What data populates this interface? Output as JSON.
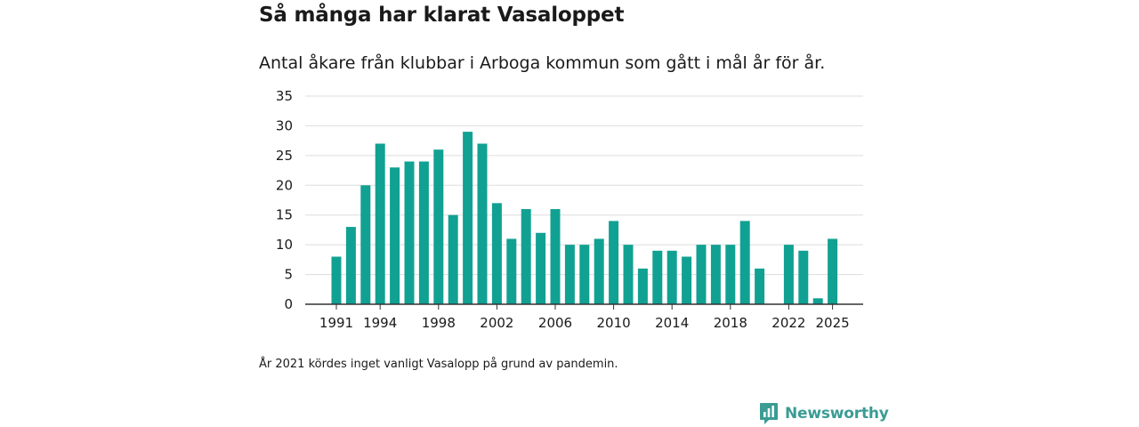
{
  "header": {
    "title": "Så många har klarat Vasaloppet",
    "subtitle": "Antal åkare från klubbar i Arboga kommun som gått i mål år för år."
  },
  "footnote": "År 2021 kördes inget vanligt Vasalopp på grund av pandemin.",
  "branding": {
    "name": "Newsworthy",
    "icon": "newsworthy-logo-icon"
  },
  "colors": {
    "bar": "#11a193",
    "grid": "#dddddd",
    "axis": "#333333",
    "brand": "#3a9c94"
  },
  "chart_data": {
    "type": "bar",
    "title": "Så många har klarat Vasaloppet",
    "xlabel": "",
    "ylabel": "",
    "ylim": [
      0,
      35
    ],
    "yticks": [
      0,
      5,
      10,
      15,
      20,
      25,
      30,
      35
    ],
    "xticks": [
      1991,
      1994,
      1998,
      2002,
      2006,
      2010,
      2014,
      2018,
      2022,
      2025
    ],
    "grid": true,
    "categories": [
      1991,
      1992,
      1993,
      1994,
      1995,
      1996,
      1997,
      1998,
      1999,
      2000,
      2001,
      2002,
      2003,
      2004,
      2005,
      2006,
      2007,
      2008,
      2009,
      2010,
      2011,
      2012,
      2013,
      2014,
      2015,
      2016,
      2017,
      2018,
      2019,
      2020,
      2021,
      2022,
      2023,
      2024,
      2025
    ],
    "values": [
      8,
      13,
      20,
      27,
      23,
      24,
      24,
      26,
      15,
      29,
      27,
      17,
      11,
      16,
      12,
      16,
      10,
      10,
      11,
      14,
      10,
      6,
      9,
      9,
      8,
      10,
      10,
      10,
      14,
      6,
      null,
      10,
      9,
      1,
      11
    ]
  }
}
